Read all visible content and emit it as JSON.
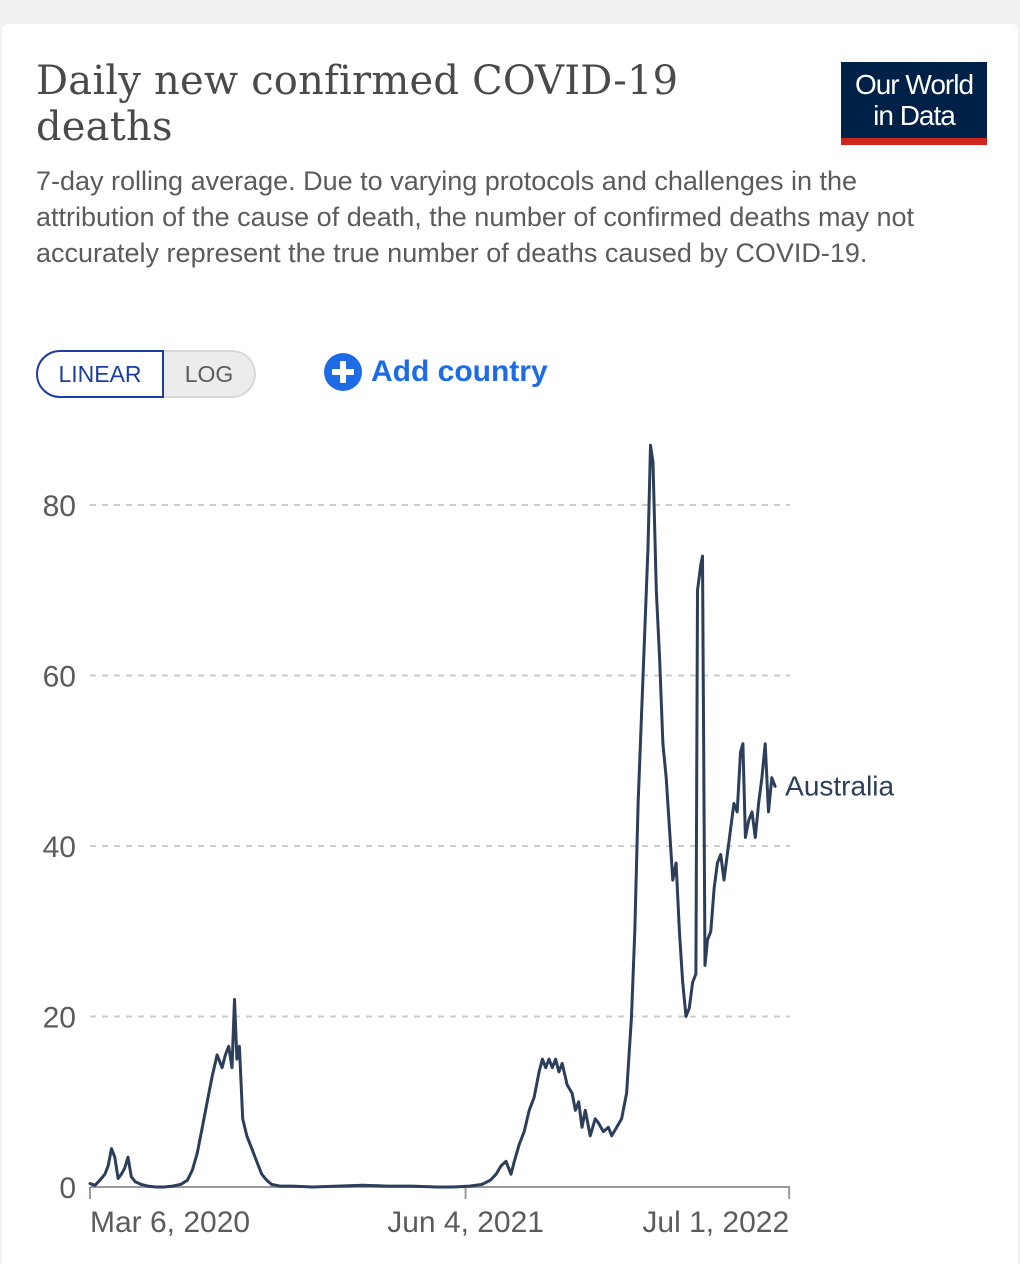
{
  "header": {
    "title": "Daily new confirmed COVID-19 deaths",
    "subtitle": "7-day rolling average. Due to varying protocols and challenges in the attribution of the cause of death, the number of confirmed deaths may not accurately represent the true number of deaths caused by COVID-19.",
    "logo_line1": "Our World",
    "logo_line2": "in Data"
  },
  "controls": {
    "linear_label": "LINEAR",
    "log_label": "LOG",
    "add_country_label": "Add country",
    "add_icon": "plus-circle-icon"
  },
  "colors": {
    "accent_blue": "#1d6ce6",
    "toggle_border": "#1d3d9f",
    "series_line": "#2c3e5a",
    "logo_bg": "#002147",
    "logo_stripe": "#ce261e",
    "grid": "#cccccc"
  },
  "chart_data": {
    "type": "line",
    "title": "Daily new confirmed COVID-19 deaths",
    "xlabel": "",
    "ylabel": "",
    "ylim": [
      0,
      88
    ],
    "yticks": [
      0,
      20,
      40,
      60,
      80
    ],
    "ytick_labels": [
      "0",
      "20",
      "40",
      "60",
      "80"
    ],
    "xrange_days": [
      0,
      848
    ],
    "xticks": [
      {
        "day": 0,
        "label": "Mar 6, 2020"
      },
      {
        "day": 455,
        "label": "Jun 4, 2021"
      },
      {
        "day": 847,
        "label": "Jul 1, 2022"
      }
    ],
    "series": [
      {
        "name": "Australia",
        "label": "Australia",
        "points": [
          [
            0,
            0.4
          ],
          [
            6,
            0.2
          ],
          [
            12,
            0.8
          ],
          [
            18,
            1.5
          ],
          [
            22,
            2.5
          ],
          [
            26,
            4.5
          ],
          [
            30,
            3.5
          ],
          [
            34,
            1.0
          ],
          [
            38,
            1.5
          ],
          [
            42,
            2.2
          ],
          [
            46,
            3.5
          ],
          [
            50,
            1.2
          ],
          [
            55,
            0.6
          ],
          [
            62,
            0.3
          ],
          [
            70,
            0.1
          ],
          [
            80,
            0.0
          ],
          [
            90,
            0.0
          ],
          [
            100,
            0.1
          ],
          [
            110,
            0.3
          ],
          [
            118,
            0.8
          ],
          [
            124,
            2.0
          ],
          [
            130,
            4.0
          ],
          [
            136,
            7.0
          ],
          [
            142,
            10.0
          ],
          [
            148,
            13.0
          ],
          [
            154,
            15.5
          ],
          [
            160,
            14.0
          ],
          [
            164,
            15.5
          ],
          [
            168,
            16.5
          ],
          [
            172,
            14.0
          ],
          [
            175,
            22.0
          ],
          [
            178,
            15.0
          ],
          [
            181,
            16.5
          ],
          [
            185,
            8.0
          ],
          [
            190,
            6.0
          ],
          [
            196,
            4.5
          ],
          [
            202,
            3.0
          ],
          [
            208,
            1.5
          ],
          [
            214,
            0.8
          ],
          [
            220,
            0.3
          ],
          [
            230,
            0.1
          ],
          [
            245,
            0.1
          ],
          [
            270,
            0.0
          ],
          [
            300,
            0.1
          ],
          [
            330,
            0.2
          ],
          [
            360,
            0.1
          ],
          [
            390,
            0.1
          ],
          [
            420,
            0.0
          ],
          [
            440,
            0.0
          ],
          [
            460,
            0.1
          ],
          [
            475,
            0.3
          ],
          [
            485,
            0.8
          ],
          [
            492,
            1.5
          ],
          [
            498,
            2.5
          ],
          [
            504,
            3.0
          ],
          [
            510,
            1.5
          ],
          [
            514,
            3.0
          ],
          [
            520,
            5.0
          ],
          [
            526,
            6.5
          ],
          [
            532,
            9.0
          ],
          [
            538,
            10.5
          ],
          [
            544,
            13.5
          ],
          [
            548,
            15.0
          ],
          [
            552,
            14.0
          ],
          [
            556,
            15.0
          ],
          [
            560,
            14.0
          ],
          [
            564,
            15.0
          ],
          [
            568,
            13.5
          ],
          [
            572,
            14.5
          ],
          [
            578,
            12.0
          ],
          [
            584,
            11.0
          ],
          [
            588,
            9.0
          ],
          [
            592,
            10.0
          ],
          [
            596,
            7.0
          ],
          [
            600,
            9.0
          ],
          [
            606,
            6.0
          ],
          [
            612,
            8.0
          ],
          [
            616,
            7.5
          ],
          [
            622,
            6.5
          ],
          [
            628,
            7.0
          ],
          [
            632,
            6.0
          ],
          [
            638,
            7.0
          ],
          [
            644,
            8.0
          ],
          [
            650,
            11.0
          ],
          [
            656,
            20.0
          ],
          [
            660,
            30.0
          ],
          [
            664,
            45.0
          ],
          [
            668,
            55.0
          ],
          [
            672,
            65.0
          ],
          [
            676,
            75.0
          ],
          [
            679,
            87.0
          ],
          [
            682,
            85.0
          ],
          [
            686,
            70.0
          ],
          [
            690,
            62.0
          ],
          [
            694,
            52.0
          ],
          [
            698,
            48.0
          ],
          [
            702,
            42.0
          ],
          [
            706,
            36.0
          ],
          [
            710,
            38.0
          ],
          [
            714,
            30.0
          ],
          [
            718,
            24.0
          ],
          [
            722,
            20.0
          ],
          [
            726,
            21.0
          ],
          [
            730,
            24.0
          ],
          [
            734,
            25.0
          ],
          [
            736,
            70.0
          ],
          [
            740,
            73.0
          ],
          [
            742,
            74.0
          ],
          [
            745,
            26.0
          ],
          [
            748,
            29.0
          ],
          [
            752,
            30.0
          ],
          [
            756,
            35.0
          ],
          [
            760,
            38.0
          ],
          [
            764,
            39.0
          ],
          [
            768,
            36.0
          ],
          [
            772,
            39.0
          ],
          [
            776,
            42.0
          ],
          [
            780,
            45.0
          ],
          [
            784,
            44.0
          ],
          [
            788,
            51.0
          ],
          [
            791,
            52.0
          ],
          [
            794,
            41.0
          ],
          [
            798,
            43.0
          ],
          [
            802,
            44.0
          ],
          [
            806,
            41.0
          ],
          [
            810,
            45.0
          ],
          [
            814,
            48.0
          ],
          [
            818,
            52.0
          ],
          [
            822,
            44.0
          ],
          [
            826,
            48.0
          ],
          [
            830,
            47.0
          ]
        ]
      }
    ]
  }
}
